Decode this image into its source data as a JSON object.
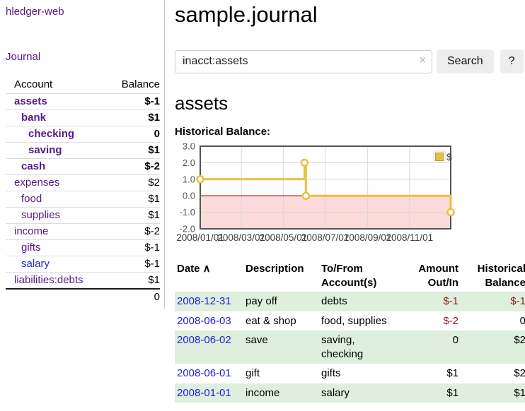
{
  "sidebar": {
    "app_title": "hledger-web",
    "journal_link": "Journal",
    "accounts_header": {
      "account": "Account",
      "balance": "Balance"
    },
    "accounts": [
      {
        "name": "assets",
        "balance": "$-1",
        "level": 1,
        "current": true,
        "balance_style": "neg-strong"
      },
      {
        "name": "bank",
        "balance": "$1",
        "level": 2,
        "current": true,
        "balance_style": ""
      },
      {
        "name": "checking",
        "balance": "0",
        "level": 3,
        "current": true,
        "balance_style": ""
      },
      {
        "name": "saving",
        "balance": "$1",
        "level": 3,
        "current": true,
        "balance_style": ""
      },
      {
        "name": "cash",
        "balance": "$-2",
        "level": 2,
        "current": true,
        "balance_style": "neg-strong"
      },
      {
        "name": "expenses",
        "balance": "$2",
        "level": 1,
        "current": false,
        "balance_style": ""
      },
      {
        "name": "food",
        "balance": "$1",
        "level": 2,
        "current": false,
        "balance_style": ""
      },
      {
        "name": "supplies",
        "balance": "$1",
        "level": 2,
        "current": false,
        "balance_style": ""
      },
      {
        "name": "income",
        "balance": "$-2",
        "level": 1,
        "current": false,
        "balance_style": "neg-soft"
      },
      {
        "name": "gifts",
        "balance": "$-1",
        "level": 2,
        "current": false,
        "balance_style": "neg-soft"
      },
      {
        "name": "salary",
        "balance": "$-1",
        "level": 2,
        "current": false,
        "balance_style": "neg-soft",
        "link": "blue"
      },
      {
        "name": "liabilities:debts",
        "balance": "$1",
        "level": 1,
        "current": false,
        "balance_style": ""
      }
    ],
    "total": "0"
  },
  "header": {
    "title": "sample.journal"
  },
  "search": {
    "value": "inacct:assets",
    "clear_icon": "×",
    "button_label": "Search",
    "help_label": "?"
  },
  "main": {
    "account_heading": "assets",
    "chart_label": "Historical Balance:"
  },
  "chart_data": {
    "type": "line",
    "title": "Historical Balance:",
    "step": true,
    "x_range": [
      "2008-01-01",
      "2008-12-31"
    ],
    "ylim": [
      -2,
      3
    ],
    "y_ticks": [
      3.0,
      2.0,
      1.0,
      0.0,
      -1.0,
      -2.0
    ],
    "x_ticks": [
      {
        "date": "2008-01-01",
        "label": "2008/01/01"
      },
      {
        "date": "2008-03-01",
        "label": "2008/03/01"
      },
      {
        "date": "2008-05-01",
        "label": "2008/05/01"
      },
      {
        "date": "2008-07-01",
        "label": "2008/07/01"
      },
      {
        "date": "2008-09-01",
        "label": "2008/09/01"
      },
      {
        "date": "2008-11-01",
        "label": "2008/11/01"
      }
    ],
    "series": [
      {
        "name": "$",
        "color": "#e9c13f",
        "points": [
          {
            "date": "2008-01-01",
            "value": 1,
            "marker": true
          },
          {
            "date": "2008-06-01",
            "value": 2,
            "marker": true
          },
          {
            "date": "2008-06-02",
            "value": 2,
            "marker": false
          },
          {
            "date": "2008-06-03",
            "value": 0,
            "marker": true
          },
          {
            "date": "2008-12-31",
            "value": -1,
            "marker": true
          }
        ]
      }
    ],
    "legend": {
      "label": "$",
      "position": "top-right"
    },
    "grid": true,
    "zero_line_color": "#b30000",
    "negative_region_color": "#fcdada"
  },
  "register": {
    "columns": [
      {
        "label": "Date",
        "sort": "asc",
        "align": "left"
      },
      {
        "label": "Description",
        "align": "left"
      },
      {
        "label": "To/From Account(s)",
        "align": "left"
      },
      {
        "label": "Amount Out/In",
        "align": "right"
      },
      {
        "label": "Historical Balance",
        "align": "right"
      }
    ],
    "sort_icon": "∧",
    "rows": [
      {
        "date": "2008-12-31",
        "description": "pay off",
        "accounts": "debts",
        "amount": "$-1",
        "amount_negative": true,
        "balance": "$-1",
        "balance_negative": true
      },
      {
        "date": "2008-06-03",
        "description": "eat & shop",
        "accounts": "food, supplies",
        "amount": "$-2",
        "amount_negative": true,
        "balance": "0",
        "balance_negative": false
      },
      {
        "date": "2008-06-02",
        "description": "save",
        "accounts": "saving, checking",
        "amount": "0",
        "amount_negative": false,
        "balance": "$2",
        "balance_negative": false
      },
      {
        "date": "2008-06-01",
        "description": "gift",
        "accounts": "gifts",
        "amount": "$1",
        "amount_negative": false,
        "balance": "$2",
        "balance_negative": false
      },
      {
        "date": "2008-01-01",
        "description": "income",
        "accounts": "salary",
        "amount": "$1",
        "amount_negative": false,
        "balance": "$1",
        "balance_negative": false
      }
    ]
  },
  "colors": {
    "link_purple": "#551a8b",
    "link_blue": "#2222dd",
    "negative_strong": "#8f1d1d",
    "negative_soft": "#b97c7c",
    "row_stripe_green": "#deefde",
    "chart_line_gold": "#e9c13f",
    "chart_negative_pink": "#fcdada",
    "chart_zero_line": "#b30000"
  }
}
